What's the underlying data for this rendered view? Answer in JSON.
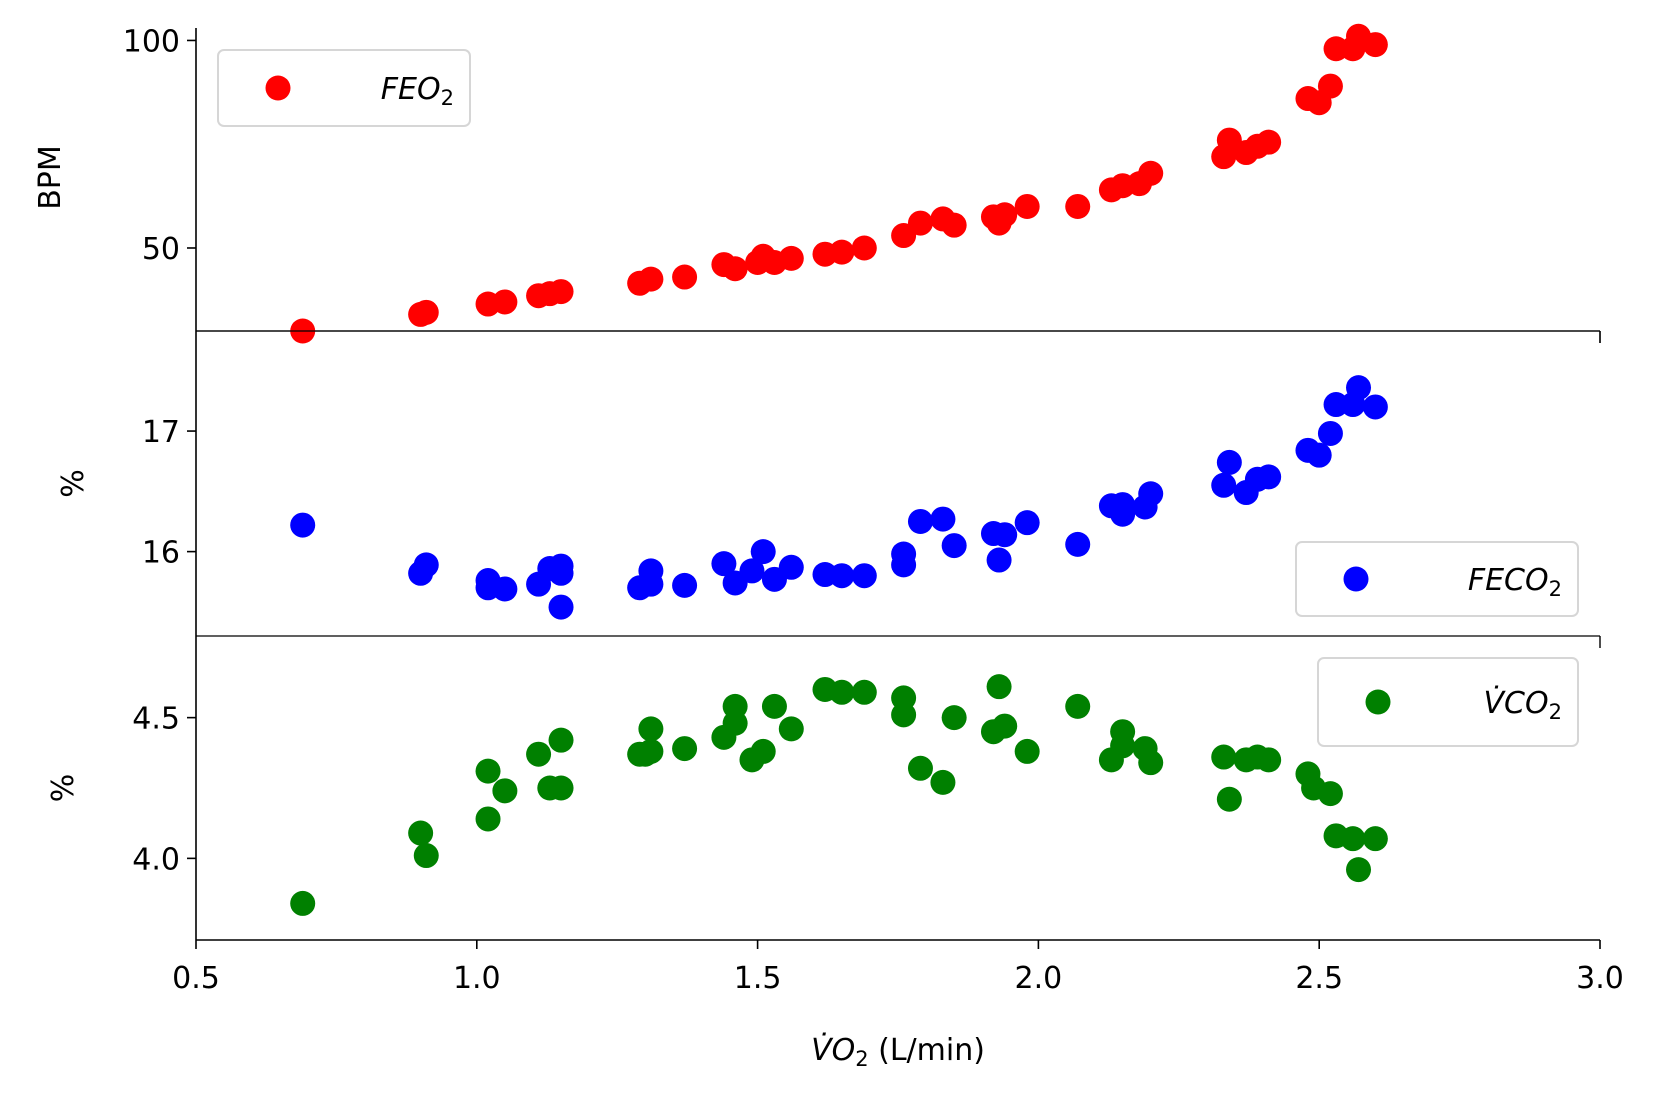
{
  "chart_data": [
    {
      "type": "scatter",
      "ylabel": "BPM",
      "ylim": [
        30,
        103
      ],
      "yticks": [
        50,
        100
      ],
      "yticklabels": [
        "50",
        "100"
      ],
      "legend": "top-left",
      "series": [
        {
          "name_main": "FEO",
          "name_sub": "2",
          "color": "#ff0000",
          "x": [
            0.69,
            0.9,
            0.91,
            1.02,
            1.05,
            1.11,
            1.13,
            1.15,
            1.29,
            1.31,
            1.37,
            1.44,
            1.46,
            1.5,
            1.51,
            1.53,
            1.56,
            1.62,
            1.65,
            1.69,
            1.76,
            1.79,
            1.83,
            1.85,
            1.92,
            1.93,
            1.94,
            1.98,
            2.07,
            2.13,
            2.15,
            2.18,
            2.2,
            2.33,
            2.34,
            2.37,
            2.39,
            2.41,
            2.48,
            2.5,
            2.52,
            2.53,
            2.56,
            2.57,
            2.6
          ],
          "y": [
            30,
            34,
            34.5,
            36.5,
            37,
            38.5,
            39,
            39.5,
            41.5,
            42.5,
            43,
            46,
            45,
            46.5,
            48,
            46.5,
            47.5,
            48.5,
            49,
            50,
            53,
            56,
            57,
            55.5,
            57.5,
            56,
            58,
            60,
            60,
            64,
            65,
            65.5,
            68,
            72,
            76,
            73,
            74.5,
            75.5,
            86,
            85,
            89,
            98,
            98,
            101,
            99
          ]
        }
      ]
    },
    {
      "type": "scatter",
      "ylabel": "%",
      "ylim": [
        15.3,
        17.83
      ],
      "yticks": [
        16,
        17
      ],
      "yticklabels": [
        "16",
        "17"
      ],
      "legend": "lower-right",
      "series": [
        {
          "name_main": "FECO",
          "name_sub": "2",
          "color": "#0000ff",
          "x": [
            0.69,
            0.9,
            0.91,
            1.02,
            1.02,
            1.05,
            1.11,
            1.13,
            1.15,
            1.15,
            1.15,
            1.29,
            1.31,
            1.31,
            1.37,
            1.44,
            1.46,
            1.49,
            1.51,
            1.53,
            1.56,
            1.62,
            1.65,
            1.69,
            1.76,
            1.76,
            1.79,
            1.83,
            1.85,
            1.92,
            1.93,
            1.94,
            1.98,
            2.07,
            2.13,
            2.15,
            2.15,
            2.19,
            2.2,
            2.33,
            2.34,
            2.37,
            2.39,
            2.41,
            2.48,
            2.5,
            2.52,
            2.53,
            2.56,
            2.57,
            2.6
          ],
          "y": [
            16.22,
            15.82,
            15.89,
            15.7,
            15.76,
            15.69,
            15.73,
            15.86,
            15.82,
            15.88,
            15.54,
            15.7,
            15.73,
            15.84,
            15.72,
            15.9,
            15.74,
            15.84,
            16.0,
            15.77,
            15.87,
            15.81,
            15.8,
            15.8,
            15.89,
            15.98,
            16.25,
            16.27,
            16.05,
            16.15,
            15.93,
            16.14,
            16.24,
            16.06,
            16.38,
            16.31,
            16.39,
            16.37,
            16.48,
            16.55,
            16.74,
            16.49,
            16.6,
            16.62,
            16.84,
            16.8,
            16.98,
            17.22,
            17.22,
            17.36,
            17.2
          ]
        }
      ]
    },
    {
      "type": "scatter",
      "ylabel": "%",
      "xlabel_main": "V̇O",
      "xlabel_sub": "2",
      "xlabel_unit": " (L/min)",
      "xlim": [
        0.5,
        3.0
      ],
      "xticks": [
        0.5,
        1.0,
        1.5,
        2.0,
        2.5,
        3.0
      ],
      "xticklabels": [
        "0.5",
        "1.0",
        "1.5",
        "2.0",
        "2.5",
        "3.0"
      ],
      "ylim": [
        3.71,
        4.79
      ],
      "yticks": [
        4.0,
        4.5
      ],
      "yticklabels": [
        "4.0",
        "4.5"
      ],
      "legend": "top-right",
      "series": [
        {
          "name_main": "V̇CO",
          "name_sub": "2",
          "color": "#008000",
          "x": [
            0.69,
            0.9,
            0.91,
            1.02,
            1.02,
            1.05,
            1.11,
            1.13,
            1.15,
            1.15,
            1.29,
            1.3,
            1.31,
            1.31,
            1.37,
            1.44,
            1.46,
            1.46,
            1.49,
            1.51,
            1.53,
            1.56,
            1.62,
            1.65,
            1.69,
            1.76,
            1.76,
            1.79,
            1.83,
            1.85,
            1.92,
            1.93,
            1.94,
            1.98,
            2.07,
            2.13,
            2.15,
            2.15,
            2.19,
            2.2,
            2.33,
            2.34,
            2.37,
            2.39,
            2.41,
            2.48,
            2.49,
            2.52,
            2.53,
            2.56,
            2.57,
            2.6
          ],
          "y": [
            3.84,
            4.09,
            4.01,
            4.31,
            4.14,
            4.24,
            4.37,
            4.25,
            4.25,
            4.42,
            4.37,
            4.37,
            4.38,
            4.46,
            4.39,
            4.43,
            4.54,
            4.48,
            4.35,
            4.38,
            4.54,
            4.46,
            4.6,
            4.59,
            4.59,
            4.57,
            4.51,
            4.32,
            4.27,
            4.5,
            4.45,
            4.61,
            4.47,
            4.38,
            4.54,
            4.35,
            4.45,
            4.4,
            4.39,
            4.34,
            4.36,
            4.21,
            4.35,
            4.36,
            4.35,
            4.3,
            4.25,
            4.23,
            4.08,
            4.07,
            3.96,
            4.07
          ]
        }
      ]
    }
  ]
}
